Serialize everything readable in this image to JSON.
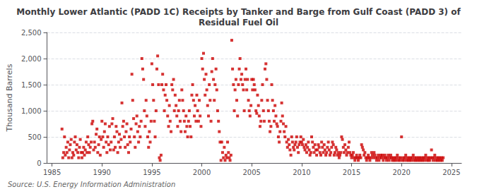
{
  "chart_data": {
    "type": "scatter",
    "title": "Monthly Lower Atlantic (PADD 1C) Receipts by Tanker and Barge from Gulf Coast (PADD 3) of\nResidual Fuel Oil",
    "ylabel": "Thousand Barrels",
    "annotations": [
      "Source: U.S. Energy Information Administration"
    ],
    "color": "#cc0000",
    "marker": "square",
    "grid": true,
    "xlim": [
      1984.5,
      2026
    ],
    "ylim": [
      0,
      2500
    ],
    "xticks": [
      1985,
      1990,
      1995,
      2000,
      2005,
      2010,
      2015,
      2020,
      2025
    ],
    "yticks": [
      0,
      500,
      {
        "value": 1000,
        "label": "1,000"
      },
      {
        "value": 1500,
        "label": "1,500"
      },
      {
        "value": 2000,
        "label": "2,000"
      },
      {
        "value": 2500,
        "label": "2,500"
      }
    ],
    "x": [
      1986.0,
      1986.08,
      1986.17,
      1986.25,
      1986.33,
      1986.42,
      1986.5,
      1986.58,
      1986.67,
      1986.75,
      1986.83,
      1986.92,
      1987.0,
      1987.08,
      1987.17,
      1987.25,
      1987.33,
      1987.42,
      1987.5,
      1987.58,
      1987.67,
      1987.75,
      1987.83,
      1987.92,
      1988.0,
      1988.08,
      1988.17,
      1988.25,
      1988.33,
      1988.42,
      1988.5,
      1988.58,
      1988.67,
      1988.75,
      1988.83,
      1988.92,
      1989.0,
      1989.08,
      1989.17,
      1989.25,
      1989.33,
      1989.42,
      1989.5,
      1989.58,
      1989.67,
      1989.75,
      1989.83,
      1989.92,
      1990.0,
      1990.08,
      1990.17,
      1990.25,
      1990.33,
      1990.42,
      1990.5,
      1990.58,
      1990.67,
      1990.75,
      1990.83,
      1990.92,
      1991.0,
      1991.08,
      1991.17,
      1991.25,
      1991.33,
      1991.42,
      1991.5,
      1991.58,
      1991.67,
      1991.75,
      1991.83,
      1991.92,
      1992.0,
      1992.08,
      1992.17,
      1992.25,
      1992.33,
      1992.42,
      1992.5,
      1992.58,
      1992.67,
      1992.75,
      1992.83,
      1992.92,
      1993.0,
      1993.08,
      1993.17,
      1993.25,
      1993.33,
      1993.42,
      1993.5,
      1993.58,
      1993.67,
      1993.75,
      1993.83,
      1993.92,
      1994.0,
      1994.08,
      1994.17,
      1994.25,
      1994.33,
      1994.42,
      1994.5,
      1994.58,
      1994.67,
      1994.75,
      1994.83,
      1994.92,
      1995.0,
      1995.08,
      1995.17,
      1995.25,
      1995.33,
      1995.42,
      1995.5,
      1995.58,
      1995.67,
      1995.75,
      1995.83,
      1995.92,
      1996.0,
      1996.08,
      1996.17,
      1996.25,
      1996.33,
      1996.42,
      1996.5,
      1996.58,
      1996.67,
      1996.75,
      1996.83,
      1996.92,
      1997.0,
      1997.08,
      1997.17,
      1997.25,
      1997.33,
      1997.42,
      1997.5,
      1997.58,
      1997.67,
      1997.75,
      1997.83,
      1997.92,
      1998.0,
      1998.08,
      1998.17,
      1998.25,
      1998.33,
      1998.42,
      1998.5,
      1998.58,
      1998.67,
      1998.75,
      1998.83,
      1998.92,
      1999.0,
      1999.08,
      1999.17,
      1999.25,
      1999.33,
      1999.42,
      1999.5,
      1999.58,
      1999.67,
      1999.75,
      1999.83,
      1999.92,
      2000.0,
      2000.08,
      2000.17,
      2000.25,
      2000.33,
      2000.42,
      2000.5,
      2000.58,
      2000.67,
      2000.75,
      2000.83,
      2000.92,
      2001.0,
      2001.08,
      2001.17,
      2001.25,
      2001.33,
      2001.42,
      2001.5,
      2001.58,
      2001.67,
      2001.75,
      2001.83,
      2001.92,
      2002.0,
      2002.08,
      2002.17,
      2002.25,
      2002.33,
      2002.42,
      2002.5,
      2002.58,
      2002.67,
      2002.75,
      2002.83,
      2002.92,
      2003.0,
      2003.08,
      2003.17,
      2003.25,
      2003.33,
      2003.42,
      2003.5,
      2003.58,
      2003.67,
      2003.75,
      2003.83,
      2003.92,
      2004.0,
      2004.08,
      2004.17,
      2004.25,
      2004.33,
      2004.42,
      2004.5,
      2004.58,
      2004.67,
      2004.75,
      2004.83,
      2004.92,
      2005.0,
      2005.08,
      2005.17,
      2005.25,
      2005.33,
      2005.42,
      2005.5,
      2005.58,
      2005.67,
      2005.75,
      2005.83,
      2005.92,
      2006.0,
      2006.08,
      2006.17,
      2006.25,
      2006.33,
      2006.42,
      2006.5,
      2006.58,
      2006.67,
      2006.75,
      2006.83,
      2006.92,
      2007.0,
      2007.08,
      2007.17,
      2007.25,
      2007.33,
      2007.42,
      2007.5,
      2007.58,
      2007.67,
      2007.75,
      2007.83,
      2007.92,
      2008.0,
      2008.08,
      2008.17,
      2008.25,
      2008.33,
      2008.42,
      2008.5,
      2008.58,
      2008.67,
      2008.75,
      2008.83,
      2008.92,
      2009.0,
      2009.08,
      2009.17,
      2009.25,
      2009.33,
      2009.42,
      2009.5,
      2009.58,
      2009.67,
      2009.75,
      2009.83,
      2009.92,
      2010.0,
      2010.08,
      2010.17,
      2010.25,
      2010.33,
      2010.42,
      2010.5,
      2010.58,
      2010.67,
      2010.75,
      2010.83,
      2010.92,
      2011.0,
      2011.08,
      2011.17,
      2011.25,
      2011.33,
      2011.42,
      2011.5,
      2011.58,
      2011.67,
      2011.75,
      2011.83,
      2011.92,
      2012.0,
      2012.08,
      2012.17,
      2012.25,
      2012.33,
      2012.42,
      2012.5,
      2012.58,
      2012.67,
      2012.75,
      2012.83,
      2012.92,
      2013.0,
      2013.08,
      2013.17,
      2013.25,
      2013.33,
      2013.42,
      2013.5,
      2013.58,
      2013.67,
      2013.75,
      2013.83,
      2013.92,
      2014.0,
      2014.08,
      2014.17,
      2014.25,
      2014.33,
      2014.42,
      2014.5,
      2014.58,
      2014.67,
      2014.75,
      2014.83,
      2014.92,
      2015.0,
      2015.08,
      2015.17,
      2015.25,
      2015.33,
      2015.42,
      2015.5,
      2015.58,
      2015.67,
      2015.75,
      2015.83,
      2015.92,
      2016.0,
      2016.08,
      2016.17,
      2016.25,
      2016.33,
      2016.42,
      2016.5,
      2016.58,
      2016.67,
      2016.75,
      2016.83,
      2016.92,
      2017.0,
      2017.08,
      2017.17,
      2017.25,
      2017.33,
      2017.42,
      2017.5,
      2017.58,
      2017.67,
      2017.75,
      2017.83,
      2017.92,
      2018.0,
      2018.08,
      2018.17,
      2018.25,
      2018.33,
      2018.42,
      2018.5,
      2018.58,
      2018.67,
      2018.75,
      2018.83,
      2018.92,
      2019.0,
      2019.08,
      2019.17,
      2019.25,
      2019.33,
      2019.42,
      2019.5,
      2019.58,
      2019.67,
      2019.75,
      2019.83,
      2019.92,
      2020.0,
      2020.08,
      2020.17,
      2020.25,
      2020.33,
      2020.42,
      2020.5,
      2020.58,
      2020.67,
      2020.75,
      2020.83,
      2020.92,
      2021.0,
      2021.08,
      2021.17,
      2021.25,
      2021.33,
      2021.42,
      2021.5,
      2021.58,
      2021.67,
      2021.75,
      2021.83,
      2021.92,
      2022.0,
      2022.08,
      2022.17,
      2022.25,
      2022.33,
      2022.42,
      2022.5,
      2022.58,
      2022.67,
      2022.75,
      2022.83,
      2022.92,
      2023.0,
      2023.08,
      2023.17,
      2023.25,
      2023.33,
      2023.42,
      2023.5,
      2023.58,
      2023.67,
      2023.75,
      2023.83,
      2023.92,
      2024.0,
      2024.08,
      2024.17
    ],
    "values": [
      650,
      100,
      200,
      500,
      150,
      300,
      200,
      400,
      100,
      250,
      350,
      450,
      100,
      200,
      150,
      400,
      500,
      250,
      350,
      200,
      100,
      300,
      450,
      200,
      100,
      200,
      300,
      150,
      250,
      400,
      200,
      500,
      350,
      200,
      300,
      400,
      750,
      800,
      250,
      400,
      300,
      550,
      650,
      200,
      350,
      500,
      150,
      450,
      800,
      500,
      300,
      600,
      750,
      400,
      200,
      500,
      350,
      700,
      250,
      400,
      750,
      850,
      250,
      500,
      300,
      700,
      600,
      200,
      400,
      550,
      300,
      450,
      1150,
      700,
      800,
      500,
      300,
      600,
      750,
      350,
      200,
      500,
      400,
      650,
      1700,
      1200,
      850,
      500,
      300,
      750,
      900,
      600,
      400,
      700,
      500,
      800,
      2000,
      1800,
      1600,
      1000,
      700,
      1200,
      900,
      500,
      300,
      600,
      400,
      800,
      1900,
      1500,
      1200,
      800,
      500,
      1000,
      1800,
      2050,
      1500,
      100,
      50,
      150,
      1500,
      1700,
      1400,
      1000,
      1300,
      1500,
      1200,
      900,
      700,
      1100,
      800,
      600,
      1500,
      1400,
      1600,
      1000,
      1300,
      1100,
      900,
      700,
      1000,
      1200,
      800,
      600,
      1400,
      1200,
      1000,
      800,
      600,
      900,
      700,
      500,
      800,
      1000,
      700,
      500,
      1300,
      1500,
      1200,
      900,
      1100,
      800,
      1300,
      1000,
      800,
      1200,
      900,
      700,
      2000,
      1800,
      2100,
      1600,
      1300,
      1700,
      1400,
      1100,
      900,
      1500,
      1200,
      800,
      1750,
      2000,
      1600,
      1200,
      1500,
      1800,
      1400,
      1000,
      800,
      600,
      400,
      50,
      400,
      200,
      100,
      300,
      50,
      150,
      100,
      400,
      200,
      100,
      50,
      150,
      2350,
      1800,
      1500,
      1000,
      1400,
      1600,
      1200,
      900,
      1500,
      1800,
      2000,
      1600,
      1700,
      1500,
      1400,
      1000,
      1600,
      1800,
      1400,
      1600,
      1200,
      1000,
      900,
      1100,
      1600,
      1400,
      1600,
      1500,
      1400,
      1000,
      950,
      1300,
      1100,
      900,
      700,
      800,
      1200,
      1500,
      1000,
      800,
      1800,
      1900,
      1600,
      1200,
      1000,
      800,
      600,
      700,
      1500,
      1200,
      1000,
      800,
      1100,
      900,
      750,
      700,
      500,
      400,
      600,
      800,
      1150,
      900,
      750,
      600,
      500,
      700,
      400,
      300,
      450,
      350,
      250,
      150,
      500,
      400,
      300,
      250,
      350,
      400,
      500,
      300,
      200,
      350,
      400,
      500,
      400,
      350,
      450,
      300,
      250,
      350,
      200,
      300,
      400,
      250,
      150,
      200,
      500,
      400,
      300,
      200,
      350,
      250,
      150,
      250,
      350,
      300,
      200,
      150,
      400,
      300,
      200,
      350,
      250,
      150,
      200,
      300,
      400,
      250,
      150,
      200,
      300,
      400,
      350,
      150,
      200,
      300,
      250,
      150,
      200,
      100,
      150,
      200,
      500,
      450,
      300,
      200,
      350,
      250,
      150,
      200,
      300,
      400,
      200,
      150,
      100,
      150,
      200,
      100,
      50,
      100,
      150,
      100,
      50,
      100,
      150,
      100,
      350,
      300,
      250,
      150,
      200,
      100,
      50,
      100,
      150,
      100,
      50,
      100,
      200,
      150,
      100,
      200,
      150,
      100,
      50,
      100,
      150,
      50,
      100,
      150,
      100,
      150,
      50,
      100,
      150,
      100,
      50,
      100,
      150,
      50,
      100,
      150,
      100,
      50,
      100,
      50,
      100,
      50,
      100,
      150,
      50,
      100,
      50,
      100,
      500,
      50,
      100,
      50,
      100,
      150,
      50,
      100,
      50,
      100,
      50,
      100,
      50,
      100,
      150,
      50,
      100,
      50,
      100,
      50,
      100,
      50,
      100,
      50,
      100,
      50,
      100,
      50,
      100,
      150,
      50,
      100,
      50,
      100,
      50,
      100,
      250,
      100,
      50,
      100,
      150,
      50,
      100,
      50,
      100,
      50,
      100,
      50,
      100,
      50,
      100
    ]
  }
}
